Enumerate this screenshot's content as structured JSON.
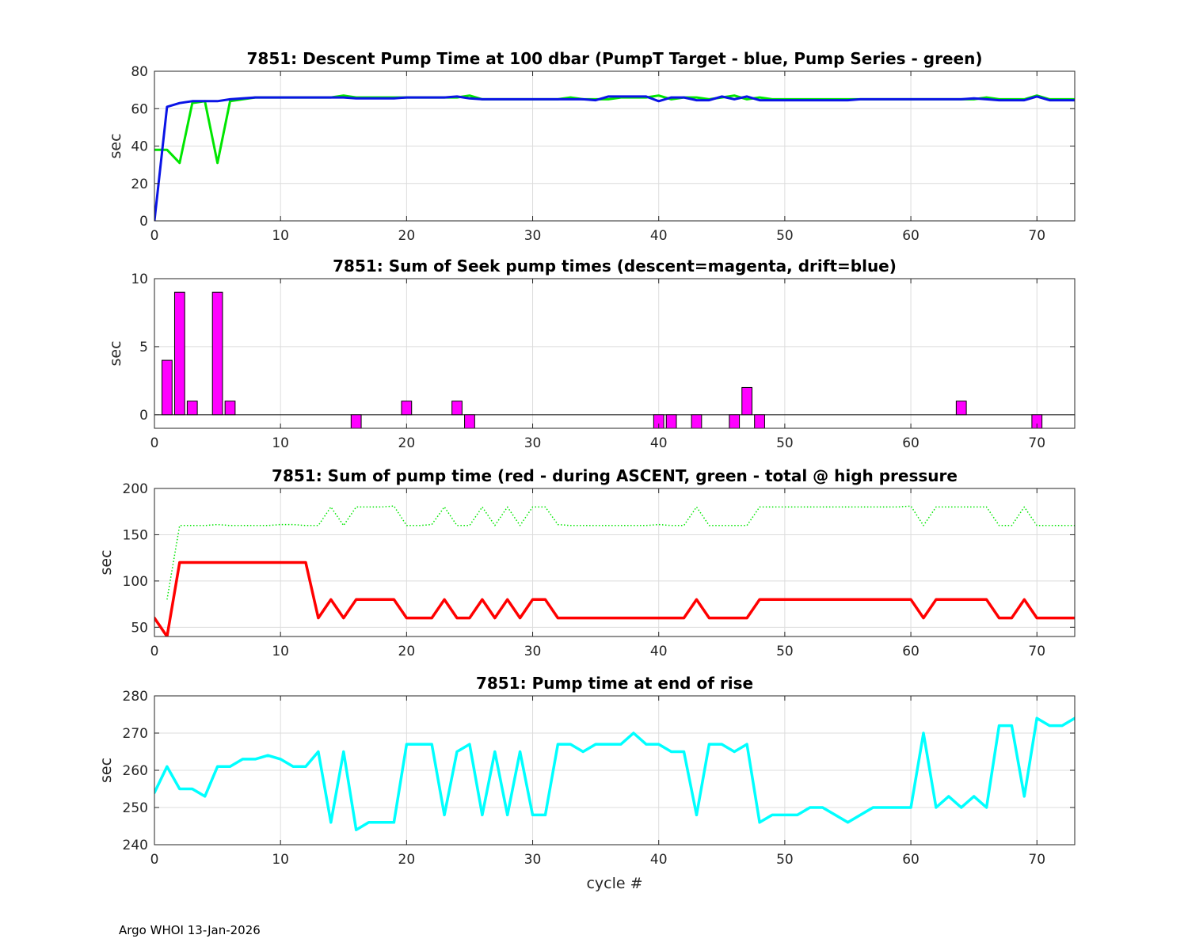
{
  "footer": "Argo WHOI 13-Jan-2026",
  "chart_data": [
    {
      "type": "line",
      "title": "7851: Descent Pump Time at 100 dbar (PumpT Target - blue, Pump Series - green)",
      "xlabel": "",
      "ylabel": "sec",
      "xlim": [
        0,
        73
      ],
      "ylim": [
        0,
        80
      ],
      "xticks": [
        0,
        10,
        20,
        30,
        40,
        50,
        60,
        70
      ],
      "yticks": [
        0,
        20,
        40,
        60,
        80
      ],
      "grid": true,
      "series": [
        {
          "color": "#00e600",
          "style": "solid",
          "width": 3,
          "x": [
            0,
            1,
            2,
            3,
            4,
            5,
            6,
            7,
            8,
            9,
            10,
            11,
            12,
            13,
            14,
            15,
            16,
            17,
            18,
            19,
            20,
            21,
            22,
            23,
            24,
            25,
            26,
            27,
            28,
            29,
            30,
            31,
            32,
            33,
            34,
            35,
            36,
            37,
            38,
            39,
            40,
            41,
            42,
            43,
            44,
            45,
            46,
            47,
            48,
            49,
            50,
            51,
            52,
            53,
            54,
            55,
            56,
            57,
            58,
            59,
            60,
            61,
            62,
            63,
            64,
            65,
            66,
            67,
            68,
            69,
            70,
            71,
            72,
            73
          ],
          "y": [
            38,
            38,
            31,
            63,
            64,
            31,
            64,
            65,
            66,
            66,
            66,
            66,
            66,
            66,
            66,
            67,
            66,
            66,
            66,
            66,
            66,
            66,
            66,
            66,
            66,
            67,
            65,
            65,
            65,
            65,
            65,
            65,
            65,
            66,
            65,
            65,
            65,
            66,
            66,
            66,
            67,
            65,
            66,
            66,
            65,
            66,
            67,
            65,
            66,
            65,
            65,
            65,
            65,
            65,
            65,
            65,
            65,
            65,
            65,
            65,
            65,
            65,
            65,
            65,
            65,
            65,
            66,
            65,
            65,
            65,
            67,
            65,
            65,
            65
          ]
        },
        {
          "color": "#0a14e6",
          "style": "solid",
          "width": 3,
          "x": [
            0,
            1,
            2,
            3,
            4,
            5,
            6,
            7,
            8,
            9,
            10,
            11,
            12,
            13,
            14,
            15,
            16,
            17,
            18,
            19,
            20,
            21,
            22,
            23,
            24,
            25,
            26,
            27,
            28,
            29,
            30,
            31,
            32,
            33,
            34,
            35,
            36,
            37,
            38,
            39,
            40,
            41,
            42,
            43,
            44,
            45,
            46,
            47,
            48,
            49,
            50,
            51,
            52,
            53,
            54,
            55,
            56,
            57,
            58,
            59,
            60,
            61,
            62,
            63,
            64,
            65,
            66,
            67,
            68,
            69,
            70,
            71,
            72,
            73
          ],
          "y": [
            0,
            61,
            63,
            64,
            64,
            64,
            65,
            65.5,
            66,
            66,
            66,
            66,
            66,
            66,
            66,
            66,
            65.5,
            65.5,
            65.5,
            65.5,
            66,
            66,
            66,
            66,
            66.5,
            65.5,
            65,
            65,
            65,
            65,
            65,
            65,
            65,
            65,
            65,
            64.5,
            66.5,
            66.5,
            66.5,
            66.5,
            64,
            66,
            66,
            64.5,
            64.5,
            66.5,
            65,
            66.5,
            64.5,
            64.5,
            64.5,
            64.5,
            64.5,
            64.5,
            64.5,
            64.5,
            65,
            65,
            65,
            65,
            65,
            65,
            65,
            65,
            65,
            65.5,
            65,
            64.5,
            64.5,
            64.5,
            66.5,
            64.5,
            64.5,
            64.5
          ]
        }
      ]
    },
    {
      "type": "bar",
      "title": "7851: Sum of Seek pump times (descent=magenta, drift=blue)",
      "xlabel": "",
      "ylabel": "sec",
      "xlim": [
        0,
        73
      ],
      "ylim": [
        -1,
        10
      ],
      "xticks": [
        0,
        10,
        20,
        30,
        40,
        50,
        60,
        70
      ],
      "yticks": [
        0,
        5,
        10
      ],
      "grid": true,
      "bar_width": 0.8,
      "color": "#ff00ff",
      "baseline": 0,
      "bars": {
        "x": [
          1,
          2,
          3,
          5,
          6,
          16,
          20,
          24,
          25,
          40,
          41,
          43,
          46,
          47,
          48,
          64,
          70
        ],
        "y": [
          4,
          9,
          1,
          9,
          1,
          -1,
          1,
          1,
          -1,
          -1,
          -1,
          -1,
          -1,
          2,
          -1,
          1,
          -1
        ]
      }
    },
    {
      "type": "line",
      "title": "7851: Sum of pump time (red - during ASCENT, green - total @ high pressure",
      "xlabel": "",
      "ylabel": "sec",
      "xlim": [
        0,
        73
      ],
      "ylim": [
        40,
        200
      ],
      "xticks": [
        0,
        10,
        20,
        30,
        40,
        50,
        60,
        70
      ],
      "yticks": [
        50,
        100,
        150,
        200
      ],
      "grid": true,
      "series": [
        {
          "color": "#00e600",
          "style": "dotted",
          "width": 1.5,
          "x": [
            1,
            2,
            3,
            4,
            5,
            6,
            7,
            8,
            9,
            10,
            11,
            12,
            13,
            14,
            15,
            16,
            17,
            18,
            19,
            20,
            21,
            22,
            23,
            24,
            25,
            26,
            27,
            28,
            29,
            30,
            31,
            32,
            33,
            34,
            35,
            36,
            37,
            38,
            39,
            40,
            41,
            42,
            43,
            44,
            45,
            46,
            47,
            48,
            49,
            50,
            51,
            52,
            53,
            54,
            55,
            56,
            57,
            58,
            59,
            60,
            61,
            62,
            63,
            64,
            65,
            66,
            67,
            68,
            69,
            70,
            71,
            72,
            73
          ],
          "y": [
            80,
            160,
            160,
            160,
            161,
            160,
            160,
            160,
            160,
            161,
            161,
            160,
            160,
            180,
            160,
            180,
            180,
            180,
            181,
            160,
            160,
            161,
            180,
            160,
            160,
            180,
            160,
            180,
            160,
            180,
            180,
            161,
            160,
            160,
            160,
            160,
            160,
            160,
            160,
            161,
            160,
            160,
            180,
            160,
            160,
            160,
            160,
            180,
            180,
            180,
            180,
            180,
            180,
            180,
            180,
            180,
            180,
            180,
            180,
            181,
            160,
            180,
            180,
            180,
            180,
            180,
            160,
            160,
            180,
            160,
            160,
            160,
            160
          ]
        },
        {
          "color": "#ff0000",
          "style": "solid",
          "width": 3.5,
          "x": [
            0,
            1,
            2,
            3,
            4,
            5,
            6,
            7,
            8,
            9,
            10,
            11,
            12,
            13,
            14,
            15,
            16,
            17,
            18,
            19,
            20,
            21,
            22,
            23,
            24,
            25,
            26,
            27,
            28,
            29,
            30,
            31,
            32,
            33,
            34,
            35,
            36,
            37,
            38,
            39,
            40,
            41,
            42,
            43,
            44,
            45,
            46,
            47,
            48,
            49,
            50,
            51,
            52,
            53,
            54,
            55,
            56,
            57,
            58,
            59,
            60,
            61,
            62,
            63,
            64,
            65,
            66,
            67,
            68,
            69,
            70,
            71,
            72,
            73
          ],
          "y": [
            60,
            40,
            120,
            120,
            120,
            120,
            120,
            120,
            120,
            120,
            120,
            120,
            120,
            60,
            80,
            60,
            80,
            80,
            80,
            80,
            60,
            60,
            60,
            80,
            60,
            60,
            80,
            60,
            80,
            60,
            80,
            80,
            60,
            60,
            60,
            60,
            60,
            60,
            60,
            60,
            60,
            60,
            60,
            80,
            60,
            60,
            60,
            60,
            80,
            80,
            80,
            80,
            80,
            80,
            80,
            80,
            80,
            80,
            80,
            80,
            80,
            60,
            80,
            80,
            80,
            80,
            80,
            60,
            60,
            80,
            60,
            60,
            60,
            60
          ]
        }
      ]
    },
    {
      "type": "line",
      "title": "7851: Pump time at end of rise",
      "xlabel": "cycle #",
      "ylabel": "sec",
      "xlim": [
        0,
        73
      ],
      "ylim": [
        240,
        280
      ],
      "xticks": [
        0,
        10,
        20,
        30,
        40,
        50,
        60,
        70
      ],
      "yticks": [
        240,
        250,
        260,
        270,
        280
      ],
      "grid": true,
      "series": [
        {
          "color": "#00ffff",
          "style": "solid",
          "width": 3.5,
          "x": [
            0,
            1,
            2,
            3,
            4,
            5,
            6,
            7,
            8,
            9,
            10,
            11,
            12,
            13,
            14,
            15,
            16,
            17,
            18,
            19,
            20,
            21,
            22,
            23,
            24,
            25,
            26,
            27,
            28,
            29,
            30,
            31,
            32,
            33,
            34,
            35,
            36,
            37,
            38,
            39,
            40,
            41,
            42,
            43,
            44,
            45,
            46,
            47,
            48,
            49,
            50,
            51,
            52,
            53,
            54,
            55,
            56,
            57,
            58,
            59,
            60,
            61,
            62,
            63,
            64,
            65,
            66,
            67,
            68,
            69,
            70,
            71,
            72,
            73
          ],
          "y": [
            254,
            261,
            255,
            255,
            253,
            261,
            261,
            263,
            263,
            264,
            263,
            261,
            261,
            265,
            246,
            265,
            244,
            246,
            246,
            246,
            267,
            267,
            267,
            248,
            265,
            267,
            248,
            265,
            248,
            265,
            248,
            248,
            267,
            267,
            265,
            267,
            267,
            267,
            270,
            267,
            267,
            265,
            265,
            248,
            267,
            267,
            265,
            267,
            246,
            248,
            248,
            248,
            250,
            250,
            248,
            246,
            248,
            250,
            250,
            250,
            250,
            270,
            250,
            253,
            250,
            253,
            250,
            272,
            272,
            253,
            274,
            272,
            272,
            274
          ]
        }
      ]
    }
  ]
}
